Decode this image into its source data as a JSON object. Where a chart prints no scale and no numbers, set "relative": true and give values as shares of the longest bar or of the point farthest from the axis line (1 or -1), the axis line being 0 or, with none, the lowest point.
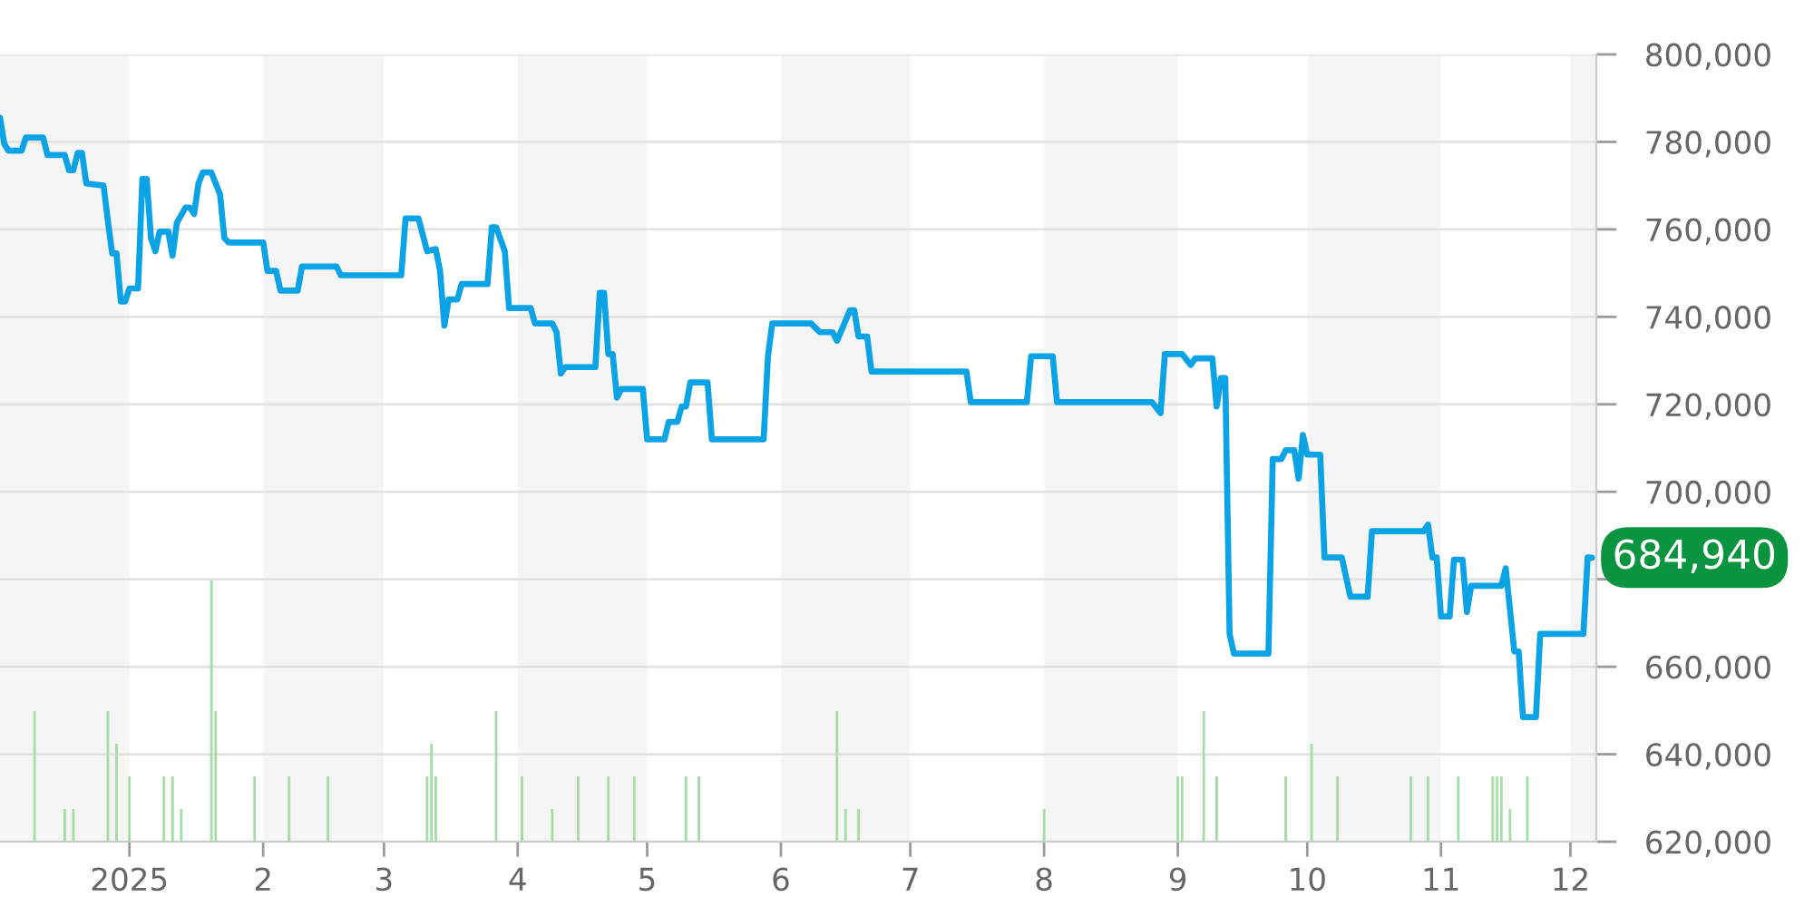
{
  "chart_data": [
    {
      "type": "line",
      "color": "#0ba2e6",
      "x": [
        "2024-12-02",
        "2024-12-03",
        "2024-12-04",
        "2024-12-07",
        "2024-12-08",
        "2024-12-12",
        "2024-12-13",
        "2024-12-17",
        "2024-12-18",
        "2024-12-19",
        "2024-12-20",
        "2024-12-21",
        "2024-12-22",
        "2024-12-26",
        "2024-12-27",
        "2024-12-28",
        "2024-12-29",
        "2024-12-30",
        "2024-12-31",
        "2025-01-01",
        "2025-01-03",
        "2025-01-04",
        "2025-01-05",
        "2025-01-06",
        "2025-01-07",
        "2025-01-08",
        "2025-01-10",
        "2025-01-11",
        "2025-01-12",
        "2025-01-14",
        "2025-01-15",
        "2025-01-16",
        "2025-01-17",
        "2025-01-18",
        "2025-01-20",
        "2025-01-22",
        "2025-01-23",
        "2025-01-24",
        "2025-02-01",
        "2025-02-02",
        "2025-02-04",
        "2025-02-05",
        "2025-02-09",
        "2025-02-10",
        "2025-02-18",
        "2025-02-19",
        "2025-03-05",
        "2025-03-06",
        "2025-03-09",
        "2025-03-11",
        "2025-03-13",
        "2025-03-14",
        "2025-03-15",
        "2025-03-16",
        "2025-03-18",
        "2025-03-19",
        "2025-03-25",
        "2025-03-26",
        "2025-03-27",
        "2025-03-29",
        "2025-03-30",
        "2025-04-04",
        "2025-04-05",
        "2025-04-09",
        "2025-04-10",
        "2025-04-11",
        "2025-04-12",
        "2025-04-19",
        "2025-04-20",
        "2025-04-21",
        "2025-04-22",
        "2025-04-23",
        "2025-04-24",
        "2025-04-25",
        "2025-04-30",
        "2025-05-01",
        "2025-05-05",
        "2025-05-06",
        "2025-05-08",
        "2025-05-09",
        "2025-05-10",
        "2025-05-11",
        "2025-05-15",
        "2025-05-16",
        "2025-05-28",
        "2025-05-29",
        "2025-05-30",
        "2025-06-08",
        "2025-06-10",
        "2025-06-13",
        "2025-06-14",
        "2025-06-17",
        "2025-06-18",
        "2025-06-19",
        "2025-06-21",
        "2025-06-22",
        "2025-07-14",
        "2025-07-15",
        "2025-07-28",
        "2025-07-29",
        "2025-08-03",
        "2025-08-04",
        "2025-08-26",
        "2025-08-28",
        "2025-08-29",
        "2025-09-02",
        "2025-09-04",
        "2025-09-05",
        "2025-09-09",
        "2025-09-10",
        "2025-09-11",
        "2025-09-12",
        "2025-09-13",
        "2025-09-14",
        "2025-09-22",
        "2025-09-23",
        "2025-09-25",
        "2025-09-26",
        "2025-09-28",
        "2025-09-29",
        "2025-09-30",
        "2025-10-01",
        "2025-10-04",
        "2025-10-05",
        "2025-10-09",
        "2025-10-11",
        "2025-10-15",
        "2025-10-16",
        "2025-10-28",
        "2025-10-29",
        "2025-10-30",
        "2025-10-31",
        "2025-11-01",
        "2025-11-03",
        "2025-11-04",
        "2025-11-06",
        "2025-11-07",
        "2025-11-08",
        "2025-11-15",
        "2025-11-16",
        "2025-11-18",
        "2025-11-19",
        "2025-11-20",
        "2025-11-23",
        "2025-11-24",
        "2025-12-04",
        "2025-12-05",
        "2025-12-06"
      ],
      "values": [
        785500,
        779500,
        778000,
        778000,
        781000,
        781000,
        777000,
        777000,
        773500,
        773500,
        777500,
        777500,
        770500,
        770000,
        762000,
        754500,
        754500,
        743500,
        743500,
        746500,
        746500,
        771500,
        771500,
        758000,
        755000,
        759500,
        759500,
        754000,
        761500,
        765000,
        765000,
        763500,
        770500,
        773000,
        773000,
        768000,
        758000,
        757000,
        757000,
        750500,
        750500,
        746000,
        746000,
        751500,
        751500,
        749500,
        749500,
        762500,
        762500,
        755000,
        755500,
        750500,
        738000,
        744000,
        744000,
        747500,
        747500,
        760500,
        760500,
        755000,
        742000,
        742000,
        738500,
        738500,
        736500,
        727000,
        728500,
        728500,
        745500,
        745500,
        731500,
        731500,
        721500,
        723500,
        723500,
        712000,
        712000,
        716000,
        716000,
        719500,
        719500,
        725000,
        725000,
        712000,
        712000,
        731000,
        738500,
        738500,
        736500,
        736500,
        734500,
        741500,
        741500,
        735500,
        735500,
        727500,
        727500,
        720500,
        720500,
        731000,
        731000,
        720500,
        720500,
        718000,
        731500,
        731500,
        729000,
        730500,
        730500,
        719500,
        726000,
        726000,
        667500,
        663000,
        663000,
        707500,
        707500,
        709500,
        709500,
        703000,
        713000,
        708500,
        708500,
        685000,
        685000,
        676000,
        676000,
        691000,
        691000,
        692500,
        685000,
        685000,
        671500,
        671500,
        684500,
        684500,
        672500,
        678500,
        678500,
        682500,
        663500,
        663500,
        648500,
        648500,
        667500,
        667500,
        685000,
        684940
      ],
      "xlim": [
        "2024-12-02",
        "2025-12-07"
      ],
      "xticks": [
        {
          "value": "2025-01-01",
          "label": "2025"
        },
        {
          "value": "2025-02-01",
          "label": "2"
        },
        {
          "value": "2025-03-01",
          "label": "3"
        },
        {
          "value": "2025-04-01",
          "label": "4"
        },
        {
          "value": "2025-05-01",
          "label": "5"
        },
        {
          "value": "2025-06-01",
          "label": "6"
        },
        {
          "value": "2025-07-01",
          "label": "7"
        },
        {
          "value": "2025-08-01",
          "label": "8"
        },
        {
          "value": "2025-09-01",
          "label": "9"
        },
        {
          "value": "2025-10-01",
          "label": "10"
        },
        {
          "value": "2025-11-01",
          "label": "11"
        },
        {
          "value": "2025-12-01",
          "label": "12"
        }
      ],
      "ylim": [
        620000,
        800000
      ],
      "yticks": [
        {
          "value": 620000,
          "label": "620,000"
        },
        {
          "value": 640000,
          "label": "640,000"
        },
        {
          "value": 660000,
          "label": "660,000"
        },
        {
          "value": 680000,
          "label": null
        },
        {
          "value": 700000,
          "label": "700,000"
        },
        {
          "value": 720000,
          "label": "720,000"
        },
        {
          "value": 740000,
          "label": "740,000"
        },
        {
          "value": 760000,
          "label": "760,000"
        },
        {
          "value": 780000,
          "label": "780,000"
        },
        {
          "value": 800000,
          "label": "800,000"
        }
      ],
      "grid": "y",
      "bands": [
        {
          "axis": "x",
          "from": "2024-12-02",
          "to": "2025-01-01",
          "color": "#f5f5f5"
        },
        {
          "axis": "x",
          "from": "2025-02-01",
          "to": "2025-03-01",
          "color": "#f5f5f5"
        },
        {
          "axis": "x",
          "from": "2025-04-01",
          "to": "2025-05-01",
          "color": "#f5f5f5"
        },
        {
          "axis": "x",
          "from": "2025-06-01",
          "to": "2025-07-01",
          "color": "#f5f5f5"
        },
        {
          "axis": "x",
          "from": "2025-08-01",
          "to": "2025-09-01",
          "color": "#f5f5f5"
        },
        {
          "axis": "x",
          "from": "2025-10-01",
          "to": "2025-11-01",
          "color": "#f5f5f5"
        },
        {
          "axis": "x",
          "from": "2025-12-01",
          "to": "2025-12-07",
          "color": "#f5f5f5"
        }
      ],
      "annotations": [
        {
          "text": "684,940",
          "x": "2025-12-06",
          "y": 684940
        }
      ]
    },
    {
      "type": "bar",
      "color": "#a6dca6",
      "relative": true,
      "x": [
        "2024-12-10",
        "2024-12-17",
        "2024-12-19",
        "2024-12-27",
        "2024-12-29",
        "2025-01-01",
        "2025-01-09",
        "2025-01-11",
        "2025-01-13",
        "2025-01-20",
        "2025-01-21",
        "2025-01-30",
        "2025-02-07",
        "2025-02-16",
        "2025-03-11",
        "2025-03-12",
        "2025-03-13",
        "2025-03-27",
        "2025-04-02",
        "2025-04-09",
        "2025-04-15",
        "2025-04-22",
        "2025-04-28",
        "2025-05-10",
        "2025-05-13",
        "2025-06-14",
        "2025-06-16",
        "2025-06-19",
        "2025-08-01",
        "2025-09-01",
        "2025-09-02",
        "2025-09-07",
        "2025-09-10",
        "2025-09-26",
        "2025-10-02",
        "2025-10-08",
        "2025-10-25",
        "2025-10-29",
        "2025-11-05",
        "2025-11-13",
        "2025-11-14",
        "2025-11-15",
        "2025-11-17",
        "2025-11-21"
      ],
      "values": [
        0.5,
        0.125,
        0.125,
        0.5,
        0.375,
        0.25,
        0.25,
        0.25,
        0.125,
        1,
        0.5,
        0.25,
        0.25,
        0.25,
        0.25,
        0.375,
        0.25,
        0.5,
        0.25,
        0.125,
        0.25,
        0.25,
        0.25,
        0.25,
        0.25,
        0.5,
        0.125,
        0.125,
        0.125,
        0.25,
        0.25,
        0.5,
        0.25,
        0.25,
        0.375,
        0.25,
        0.25,
        0.25,
        0.25,
        0.25,
        0.25,
        0.25,
        0.125,
        0.25
      ],
      "xlim": [
        "2024-12-02",
        "2025-12-07"
      ],
      "tick_labels": false
    }
  ]
}
